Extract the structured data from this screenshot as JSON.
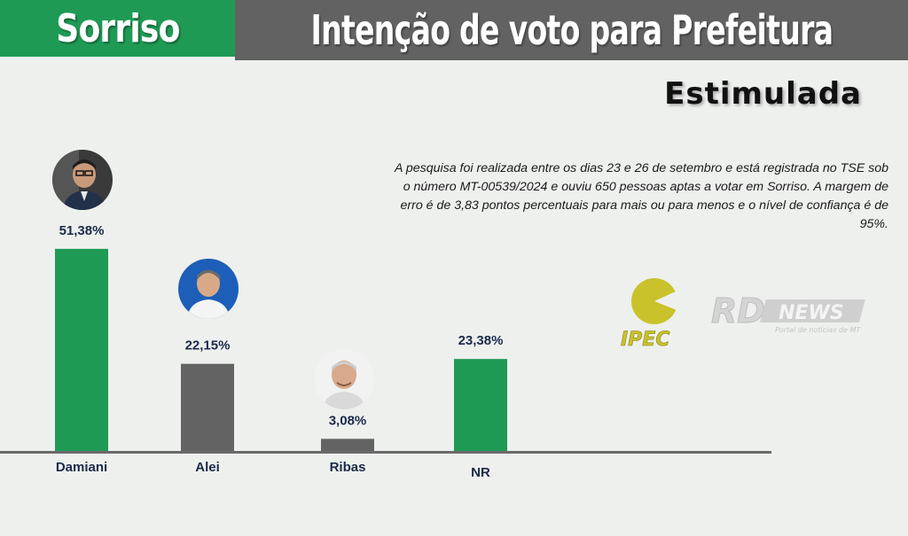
{
  "header": {
    "city": "Sorriso",
    "title": "Intenção de voto para Prefeitura"
  },
  "subtitle": "Estimulada",
  "note": "A pesquisa foi realizada entre os dias 23 e 26 de setembro e está registrada no TSE sob o número MT-00539/2024 e ouviu 650 pessoas aptas a votar em Sorriso. A margem de erro é de 3,83 pontos percentuais para mais ou para menos e o nível de confiança é de 95%.",
  "logos": {
    "pollster": "IPEC",
    "media": "RD NEWS",
    "media_tagline": "Portal de notícias de MT"
  },
  "colors": {
    "green": "#1f9a55",
    "gray": "#636363",
    "label": "#1b2a4a"
  },
  "chart_data": {
    "type": "bar",
    "categories": [
      "Damiani",
      "Alei",
      "Ribas",
      "NR"
    ],
    "values": [
      51.38,
      22.15,
      3.08,
      23.38
    ],
    "value_labels": [
      "51,38%",
      "22,15%",
      "3,08%",
      "23,38%"
    ],
    "bar_colors": [
      "#1f9a55",
      "#636363",
      "#636363",
      "#1f9a55"
    ],
    "title": "Intenção de voto para Prefeitura",
    "subtitle": "Estimulada",
    "xlabel": "",
    "ylabel": "",
    "ylim": [
      0,
      55
    ],
    "grid": false,
    "legend": "none"
  }
}
